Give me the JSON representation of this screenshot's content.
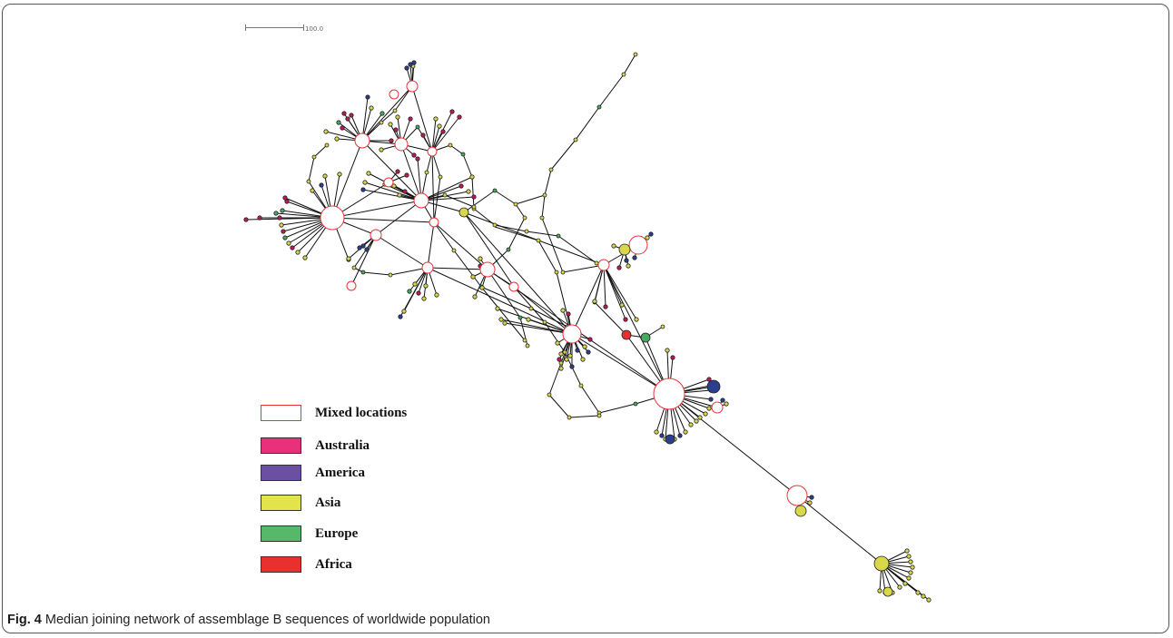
{
  "figure": {
    "caption_label": "Fig. 4",
    "caption_text": " Median joining network of assemblage B sequences of worldwide population"
  },
  "scale_bar": {
    "label": "100.0"
  },
  "legend": [
    {
      "label": "Mixed locations",
      "fill": "#ffffff",
      "border": "#e8333a"
    },
    {
      "label": "Australia",
      "fill": "#e8317a",
      "border": "#333333"
    },
    {
      "label": "America",
      "fill": "#6a4fa3",
      "border": "#333333"
    },
    {
      "label": "Asia",
      "fill": "#e3e34c",
      "border": "#333333"
    },
    {
      "label": "Europe",
      "fill": "#57b86a",
      "border": "#333333"
    },
    {
      "label": "Africa",
      "fill": "#e8302e",
      "border": "#333333"
    }
  ],
  "colors": {
    "mixed_border": "#e8333a",
    "australia": "#c2185b",
    "america": "#2b3f8f",
    "asia": "#d8d84a",
    "europe": "#4aa860",
    "africa": "#e8302e",
    "edge": "#111111"
  }
}
